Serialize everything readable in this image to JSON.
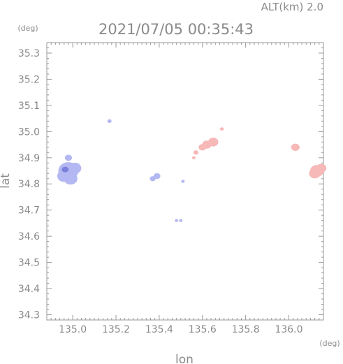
{
  "header": {
    "altitude_label": "ALT(km) 2.0",
    "timestamp": "2021/07/05 00:35:43"
  },
  "chart_data": {
    "type": "scatter",
    "title": "2021/07/05 00:35:43",
    "xlabel": "lon",
    "ylabel": "lat",
    "x_unit": "(deg)",
    "y_unit": "(deg)",
    "xlim": [
      134.88,
      136.16
    ],
    "ylim": [
      34.28,
      35.34
    ],
    "x_ticks": [
      135.0,
      135.2,
      135.4,
      135.6,
      135.8,
      136.0
    ],
    "x_tick_labels": [
      "135.0",
      "135.2",
      "135.4",
      "135.6",
      "135.8",
      "136.0"
    ],
    "y_ticks": [
      34.3,
      34.4,
      34.5,
      34.6,
      34.7,
      34.8,
      34.9,
      35.0,
      35.1,
      35.2,
      35.3
    ],
    "y_tick_labels": [
      "34.3",
      "34.4",
      "34.5",
      "34.6",
      "34.7",
      "34.8",
      "34.9",
      "35.0",
      "35.1",
      "35.2",
      "35.3"
    ],
    "grid": false,
    "colors": {
      "blue": "#b4b8f2",
      "blue_dark": "#7c80dc",
      "pink": "#f7b8b8",
      "frame": "#999999"
    },
    "series": [
      {
        "color": "blue",
        "points": [
          [
            134.98,
            34.85,
            0.045
          ],
          [
            134.96,
            34.83,
            0.03
          ],
          [
            134.99,
            34.82,
            0.03
          ],
          [
            135.01,
            34.86,
            0.028
          ],
          [
            134.98,
            34.9,
            0.015
          ],
          [
            135.17,
            35.04,
            0.008
          ],
          [
            135.37,
            34.82,
            0.012
          ],
          [
            135.39,
            34.83,
            0.014
          ],
          [
            135.51,
            34.81,
            0.005
          ],
          [
            135.48,
            34.66,
            0.005
          ],
          [
            135.5,
            34.66,
            0.005
          ]
        ]
      },
      {
        "color": "pink",
        "points": [
          [
            135.62,
            34.95,
            0.02
          ],
          [
            135.6,
            34.94,
            0.016
          ],
          [
            135.65,
            34.96,
            0.022
          ],
          [
            135.57,
            34.92,
            0.01
          ],
          [
            135.56,
            34.9,
            0.005
          ],
          [
            135.69,
            35.01,
            0.007
          ],
          [
            136.03,
            34.94,
            0.018
          ],
          [
            136.13,
            34.85,
            0.03
          ],
          [
            136.12,
            34.84,
            0.025
          ],
          [
            136.15,
            34.86,
            0.022
          ]
        ]
      }
    ]
  }
}
